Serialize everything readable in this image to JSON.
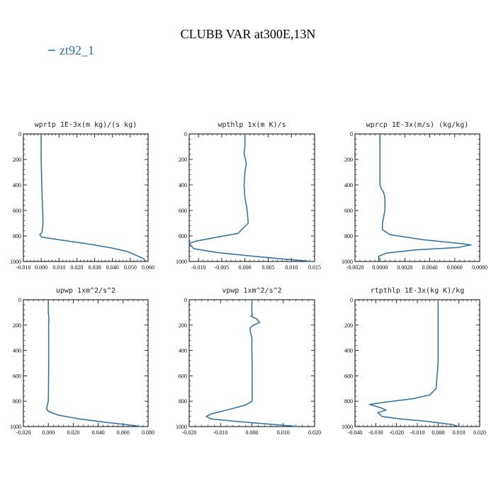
{
  "title": "CLUBB VAR at300E,13N",
  "legend": {
    "label": "zt92_1",
    "color": "#2a6fa8"
  },
  "series_color": "#2a6fa8",
  "chart_data": [
    {
      "type": "line",
      "title": "wprtp  1E-3x(m kg)/(s kg)",
      "xlim": [
        -0.01,
        0.06
      ],
      "ylim": [
        1000,
        0
      ],
      "xticks": [
        -0.01,
        0,
        0.01,
        0.02,
        0.03,
        0.04,
        0.05,
        0.06
      ],
      "xtick_labels": [
        "-0.010",
        "0.000",
        "0.010",
        "0.020",
        "0.030",
        "0.040",
        "0.050",
        "0.060"
      ],
      "yticks": [
        0,
        200,
        400,
        600,
        800,
        1000
      ],
      "ytick_labels": [
        "0",
        "200",
        "400",
        "600",
        "800",
        "1000"
      ],
      "series": [
        {
          "x": [
            0.0,
            0.0,
            0.0003,
            0.0008,
            0.001,
            0.0005,
            -0.0008,
            0.0005,
            0.01,
            0.025,
            0.038,
            0.048,
            0.053,
            0.057,
            0.059
          ],
          "y": [
            0,
            200,
            400,
            600,
            700,
            770,
            790,
            810,
            830,
            860,
            890,
            920,
            950,
            975,
            1000
          ]
        }
      ]
    },
    {
      "type": "line",
      "title": "wpthlp  1x(m K)/s",
      "xlim": [
        -0.012,
        0.015
      ],
      "ylim": [
        1000,
        0
      ],
      "xticks": [
        -0.01,
        -0.005,
        0,
        0.005,
        0.01,
        0.015
      ],
      "xtick_labels": [
        "-0.010",
        "-0.005",
        "0.000",
        "0.005",
        "0.010",
        "0.015"
      ],
      "yticks": [
        0,
        200,
        400,
        600,
        800,
        1000
      ],
      "ytick_labels": [
        "0",
        "200",
        "400",
        "600",
        "800",
        "1000"
      ],
      "series": [
        {
          "x": [
            0.0,
            0.0,
            -0.0002,
            0.0003,
            0.0,
            -0.0002,
            0.0,
            0.0005,
            0.0007,
            -0.0015,
            -0.006,
            -0.0105,
            -0.012,
            -0.011,
            -0.006,
            0.002,
            0.008,
            0.0145
          ],
          "y": [
            0,
            100,
            150,
            230,
            300,
            400,
            500,
            600,
            700,
            780,
            810,
            840,
            860,
            900,
            930,
            960,
            980,
            1000
          ]
        }
      ]
    },
    {
      "type": "line",
      "title": "wprcp  1E-3x(m/s) (kg/kg)",
      "xlim": [
        -0.002,
        0.008
      ],
      "ylim": [
        1000,
        0
      ],
      "xticks": [
        -0.002,
        0,
        0.002,
        0.004,
        0.006,
        0.008
      ],
      "xtick_labels": [
        "-0.0020",
        "0.0000",
        "0.0020",
        "0.0040",
        "0.0060",
        "0.0080"
      ],
      "yticks": [
        0,
        200,
        400,
        600,
        800,
        1000
      ],
      "ytick_labels": [
        "0",
        "200",
        "400",
        "600",
        "800",
        "1000"
      ],
      "series": [
        {
          "x": [
            0.0,
            0.0,
            0.0,
            0.0001,
            0.0003,
            0.0004,
            0.0004,
            0.0002,
            0.0002,
            0.0008,
            0.0035,
            0.0065,
            0.0073,
            0.0063,
            0.0028,
            0.0005,
            -0.0001,
            -0.0001
          ],
          "y": [
            0,
            200,
            400,
            430,
            460,
            500,
            600,
            700,
            750,
            790,
            830,
            860,
            870,
            890,
            910,
            935,
            960,
            1000
          ]
        }
      ]
    },
    {
      "type": "line",
      "title": "upwp  1xm^2/s^2",
      "xlim": [
        -0.02,
        0.08
      ],
      "ylim": [
        1000,
        0
      ],
      "xticks": [
        -0.02,
        0,
        0.02,
        0.04,
        0.06,
        0.08
      ],
      "xtick_labels": [
        "-0.020",
        "0.000",
        "0.020",
        "0.040",
        "0.060",
        "0.080"
      ],
      "yticks": [
        0,
        200,
        400,
        600,
        800,
        1000
      ],
      "ytick_labels": [
        "0",
        "200",
        "400",
        "600",
        "800",
        "1000"
      ],
      "series": [
        {
          "x": [
            0.0,
            0.0,
            0.0005,
            0.0002,
            0.0003,
            0.0002,
            0.0,
            -0.0015,
            0.0,
            0.008,
            0.025,
            0.045,
            0.062,
            0.075
          ],
          "y": [
            0,
            100,
            150,
            200,
            400,
            600,
            800,
            860,
            880,
            910,
            940,
            965,
            985,
            1000
          ]
        }
      ]
    },
    {
      "type": "line",
      "title": "vpwp  1xm^2/s^2",
      "xlim": [
        -0.02,
        0.02
      ],
      "ylim": [
        1000,
        0
      ],
      "xticks": [
        -0.02,
        -0.01,
        0,
        0.01,
        0.02
      ],
      "xtick_labels": [
        "-0.020",
        "-0.010",
        "0.000",
        "0.010",
        "0.020"
      ],
      "yticks": [
        0,
        200,
        400,
        600,
        800,
        1000
      ],
      "ytick_labels": [
        "0",
        "200",
        "400",
        "600",
        "800",
        "1000"
      ],
      "series": [
        {
          "x": [
            0.0,
            0.0,
            0.0002,
            -0.0003,
            0.0015,
            0.0025,
            0.0005,
            -0.0005,
            -0.0006,
            0.0,
            0.0,
            0.0001,
            0.0001,
            -0.002,
            -0.008,
            -0.013,
            -0.0145,
            -0.013,
            -0.005,
            0.005,
            0.015
          ],
          "y": [
            0,
            100,
            120,
            130,
            150,
            180,
            200,
            220,
            240,
            300,
            400,
            500,
            800,
            830,
            870,
            900,
            920,
            940,
            960,
            980,
            1000
          ]
        }
      ]
    },
    {
      "type": "line",
      "title": "rtpthlp  1E-3x(kg K)/kg",
      "xlim": [
        -0.04,
        0.02
      ],
      "ylim": [
        1000,
        0
      ],
      "xticks": [
        -0.04,
        -0.03,
        -0.02,
        -0.01,
        0,
        0.01,
        0.02
      ],
      "xtick_labels": [
        "-0.040",
        "-0.030",
        "-0.020",
        "-0.010",
        "0.000",
        "0.010",
        "0.020"
      ],
      "yticks": [
        0,
        200,
        400,
        600,
        800,
        1000
      ],
      "ytick_labels": [
        "0",
        "200",
        "400",
        "600",
        "800",
        "1000"
      ],
      "series": [
        {
          "x": [
            0.0,
            0.0,
            0.0,
            -0.001,
            -0.004,
            -0.012,
            -0.022,
            -0.033,
            -0.028,
            -0.025,
            -0.029,
            -0.027,
            -0.018,
            -0.005,
            0.007,
            0.01
          ],
          "y": [
            0,
            200,
            500,
            700,
            750,
            780,
            800,
            825,
            850,
            870,
            890,
            920,
            940,
            960,
            985,
            1000
          ]
        }
      ]
    }
  ]
}
